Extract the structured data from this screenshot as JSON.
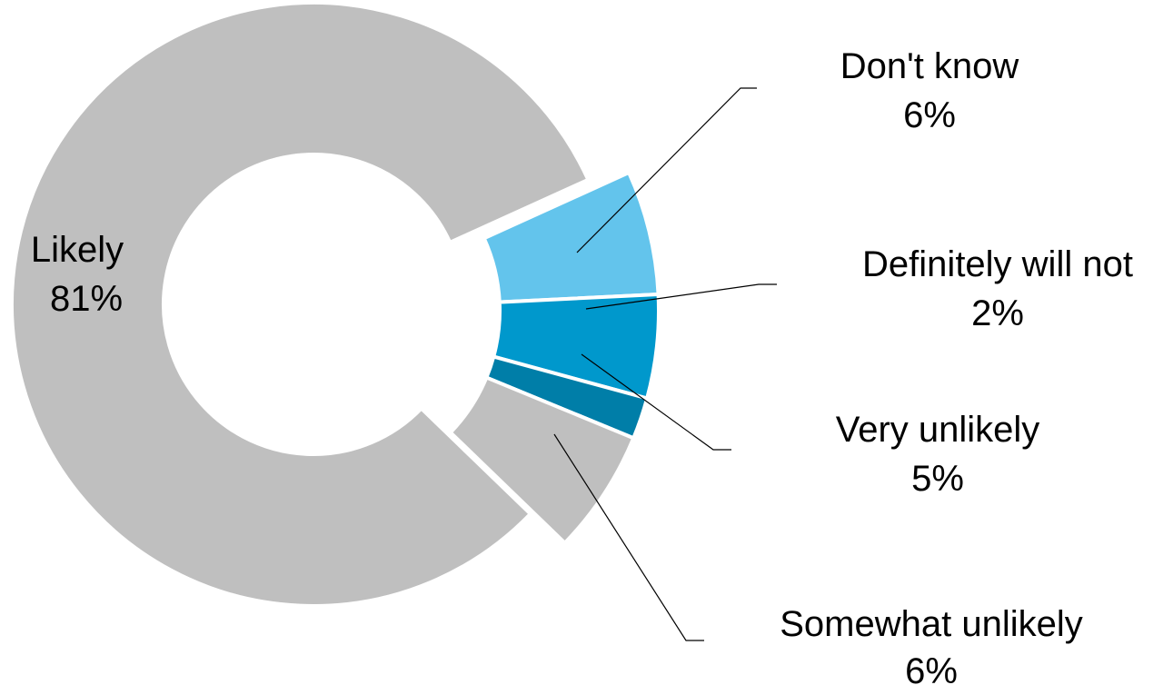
{
  "chart_data": {
    "type": "pie",
    "variant": "donut",
    "title": "",
    "slices": [
      {
        "label": "Likely",
        "value": 81,
        "display": "81%",
        "color": "#bfbfbf"
      },
      {
        "label": "Somewhat unlikely",
        "value": 6,
        "display": "6%",
        "color": "#63c4ec"
      },
      {
        "label": "Very unlikely",
        "value": 5,
        "display": "5%",
        "color": "#0098cc"
      },
      {
        "label": "Definitely will not",
        "value": 2,
        "display": "2%",
        "color": "#007ea8"
      },
      {
        "label": "Don't know",
        "value": 6,
        "display": "6%",
        "color": "#bfbfbf"
      }
    ],
    "legend": "none",
    "label_style": "category and percentage on each slice, callout lines for small slices"
  }
}
